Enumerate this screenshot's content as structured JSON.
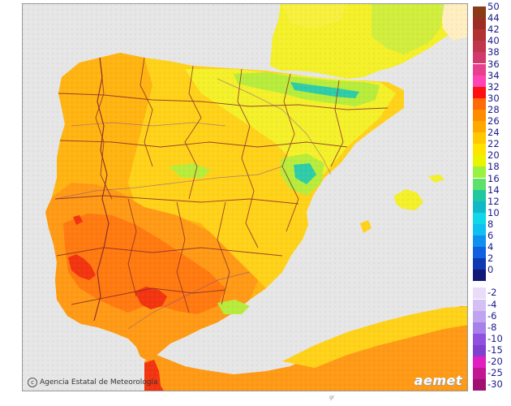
{
  "map": {
    "credit": "Agencia Estatal de Meteorología",
    "credit_icon": "c",
    "logo": "aemet",
    "bottom_mark": "gr",
    "colors": {
      "sea": "#e6e6e6",
      "hot_south": "#ff9a16",
      "very_hot": "#ff7a10",
      "extreme": "#f23510",
      "mild": "#ffd21a",
      "warm": "#ffb412",
      "cool": "#f4f02a",
      "green": "#b8ec3c",
      "teal": "#2fcca8",
      "border": "#8a2a2a",
      "river": "#6b3aa8"
    }
  },
  "legend": {
    "positive": [
      {
        "label": "50",
        "color": "#8b3a18"
      },
      {
        "label": "44",
        "color": "#9c2c26"
      },
      {
        "label": "42",
        "color": "#b03232"
      },
      {
        "label": "40",
        "color": "#c0364a"
      },
      {
        "label": "38",
        "color": "#d23a6c"
      },
      {
        "label": "36",
        "color": "#e8408e"
      },
      {
        "label": "34",
        "color": "#ff44b4"
      },
      {
        "label": "32",
        "color": "#ff1010"
      },
      {
        "label": "30",
        "color": "#ff6a08"
      },
      {
        "label": "28",
        "color": "#ff8c00"
      },
      {
        "label": "26",
        "color": "#ffa800"
      },
      {
        "label": "24",
        "color": "#ffc800"
      },
      {
        "label": "22",
        "color": "#ffe400"
      },
      {
        "label": "20",
        "color": "#e8f400"
      },
      {
        "label": "18",
        "color": "#9cf040"
      },
      {
        "label": "16",
        "color": "#5ce26a"
      },
      {
        "label": "14",
        "color": "#20c8a0"
      },
      {
        "label": "12",
        "color": "#10b8c8"
      },
      {
        "label": "10",
        "color": "#10d8e8"
      },
      {
        "label": "8",
        "color": "#10c0f0"
      },
      {
        "label": "6",
        "color": "#1090f0"
      },
      {
        "label": "4",
        "color": "#1060e0"
      },
      {
        "label": "2",
        "color": "#1038b0"
      },
      {
        "label": "0",
        "color": "#101878"
      }
    ],
    "negative": [
      {
        "label": "-2",
        "color": "#e8dcf8"
      },
      {
        "label": "-4",
        "color": "#d4c0f4"
      },
      {
        "label": "-6",
        "color": "#c0a4f0"
      },
      {
        "label": "-8",
        "color": "#a880ea"
      },
      {
        "label": "-10",
        "color": "#9050e0"
      },
      {
        "label": "-15",
        "color": "#8040d0"
      },
      {
        "label": "-20",
        "color": "#e020c0"
      },
      {
        "label": "-25",
        "color": "#c01890"
      },
      {
        "label": "-30",
        "color": "#a01070"
      }
    ]
  }
}
